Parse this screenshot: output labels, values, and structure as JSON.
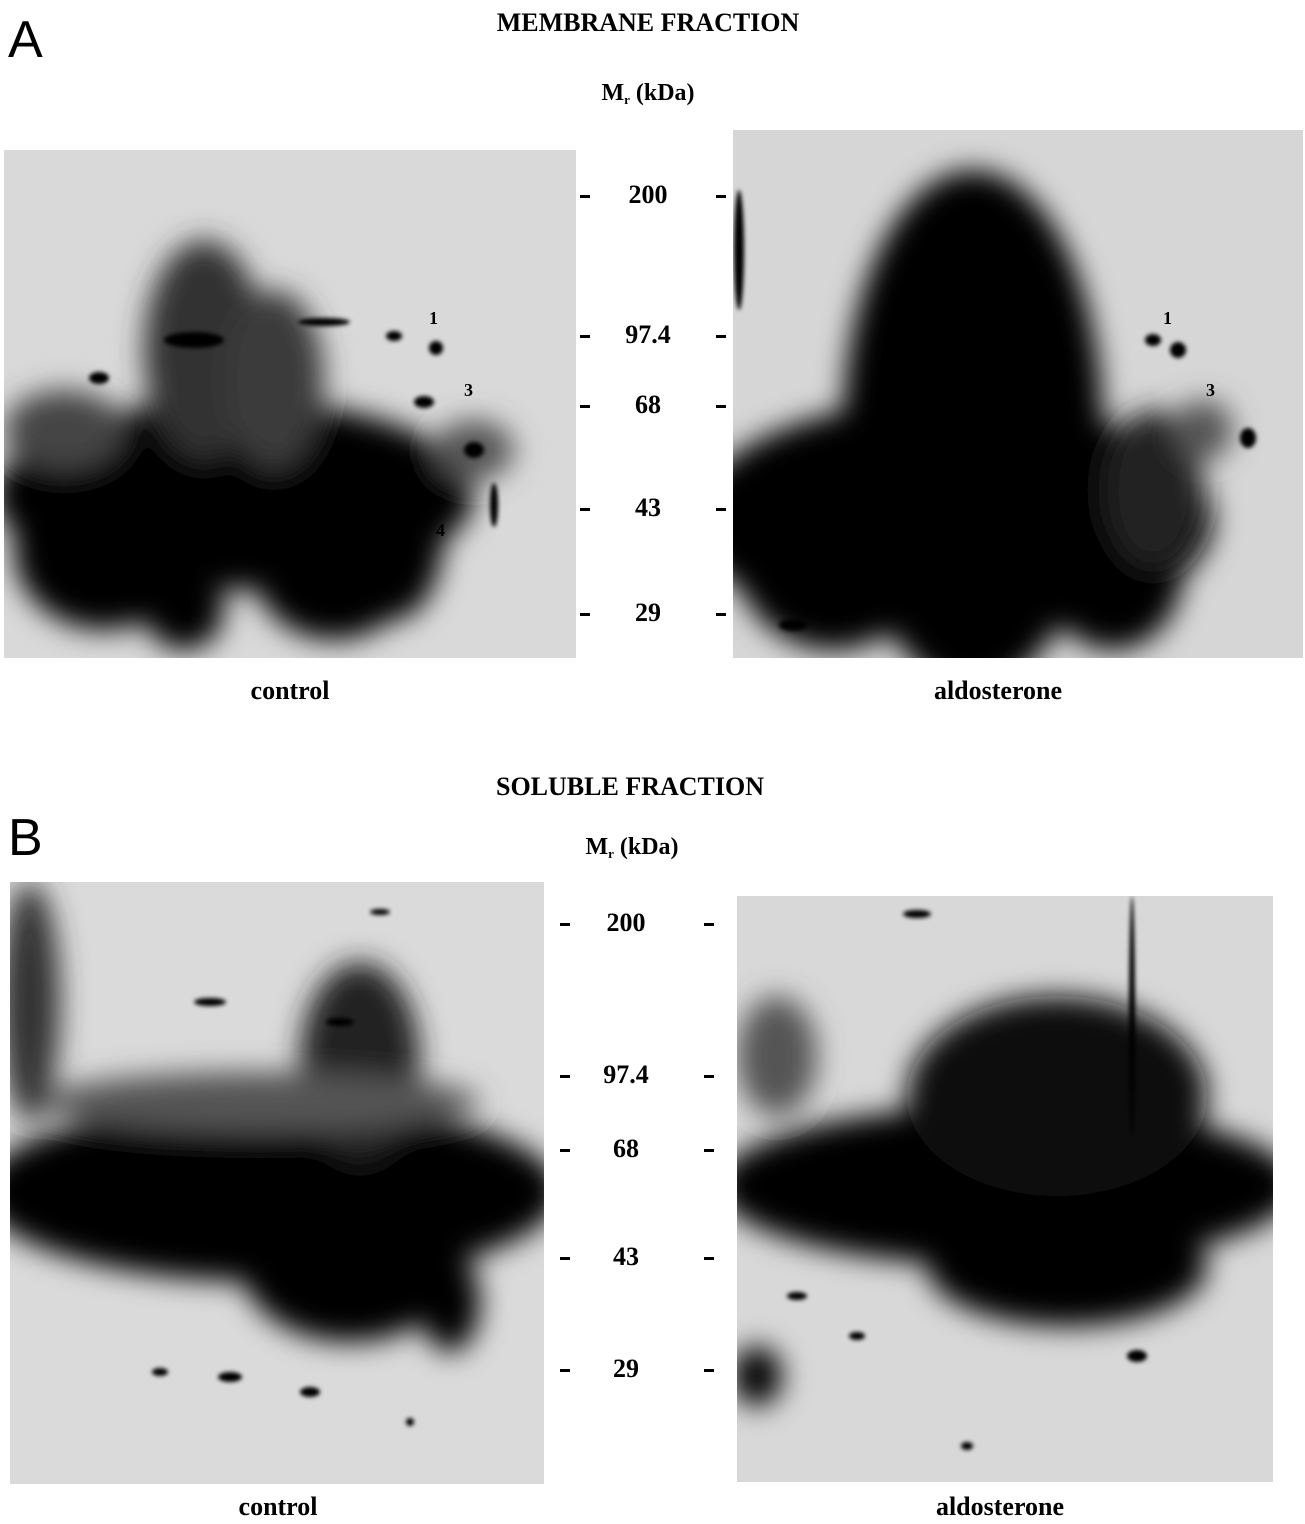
{
  "panel_a": {
    "letter": "A",
    "title": "MEMBRANE FRACTION",
    "mr_label": "M",
    "mr_sub": "r",
    "mr_unit": " (kDa)",
    "markers": [
      "200",
      "97.4",
      "68",
      "43",
      "29"
    ],
    "left_caption": "control",
    "right_caption": "aldosterone",
    "spot_labels_left": [
      "1",
      "3",
      "4"
    ],
    "spot_labels_right": [
      "1",
      "3"
    ]
  },
  "panel_b": {
    "letter": "B",
    "title": "SOLUBLE FRACTION",
    "mr_label": "M",
    "mr_sub": "r",
    "mr_unit": " (kDa)",
    "markers": [
      "200",
      "97.4",
      "68",
      "43",
      "29"
    ],
    "left_caption": "control",
    "right_caption": "aldosterone"
  }
}
